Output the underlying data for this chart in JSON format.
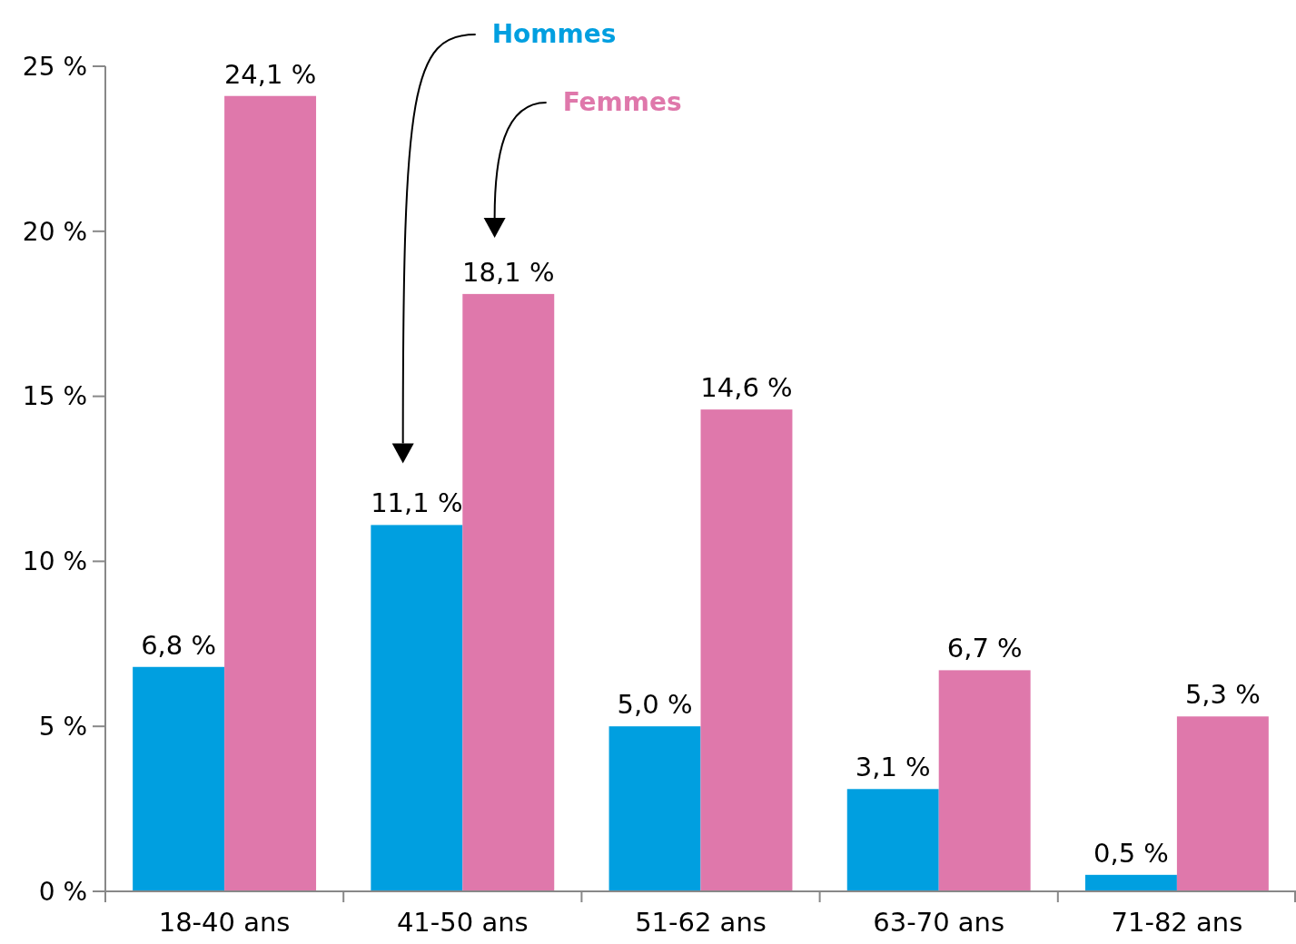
{
  "chart_data": {
    "type": "bar",
    "categories": [
      "18-40 ans",
      "41-50 ans",
      "51-62 ans",
      "63-70 ans",
      "71-82 ans"
    ],
    "series": [
      {
        "name": "Hommes",
        "color": "#009fe0",
        "values": [
          6.8,
          11.1,
          5.0,
          3.1,
          0.5
        ],
        "value_labels": [
          "6,8 %",
          "11,1 %",
          "5,0 %",
          "3,1 %",
          "0,5 %"
        ]
      },
      {
        "name": "Femmes",
        "color": "#df78ab",
        "values": [
          24.1,
          18.1,
          14.6,
          6.7,
          5.3
        ],
        "value_labels": [
          "24,1 %",
          "18,1 %",
          "14,6 %",
          "6,7 %",
          "5,3 %"
        ]
      }
    ],
    "ylim": [
      0,
      25
    ],
    "yticks": [
      {
        "value": 0,
        "label": "0 %"
      },
      {
        "value": 5,
        "label": "5 %"
      },
      {
        "value": 10,
        "label": "10 %"
      },
      {
        "value": 15,
        "label": "15 %"
      },
      {
        "value": 20,
        "label": "20 %"
      },
      {
        "value": 25,
        "label": "25 %"
      }
    ],
    "grid": false,
    "legend": false
  }
}
